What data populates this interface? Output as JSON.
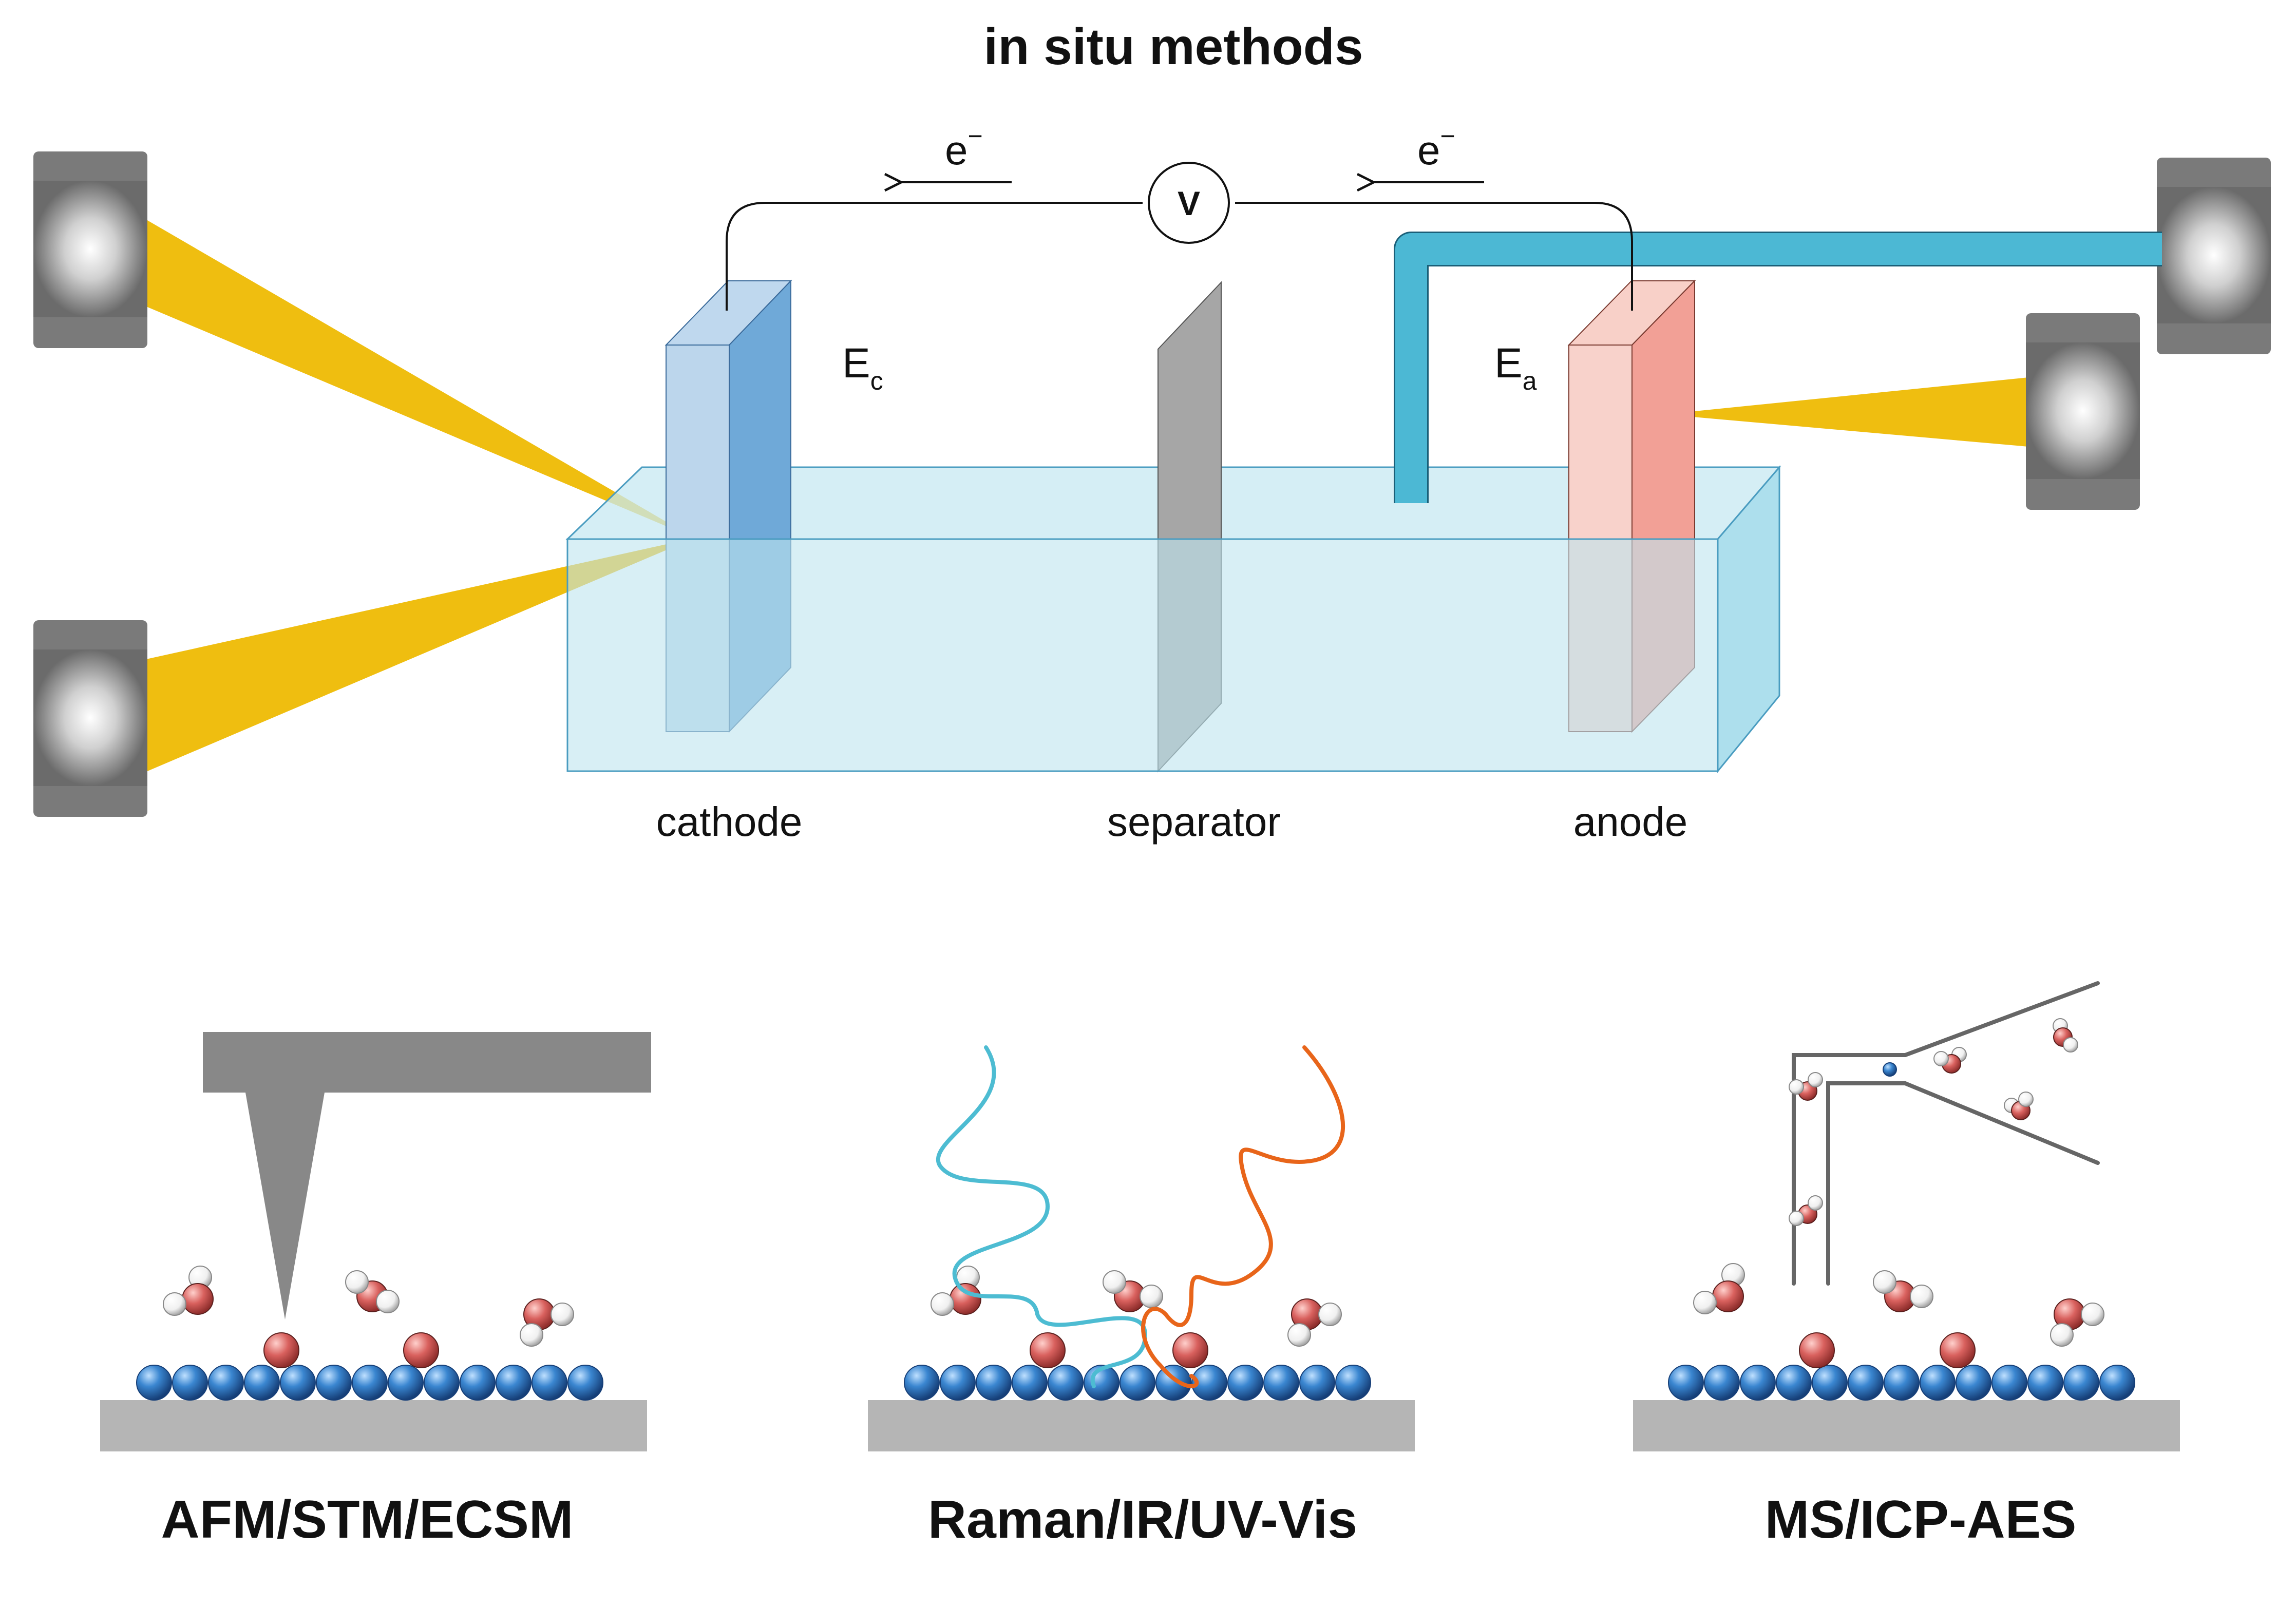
{
  "title": "in situ methods",
  "cell": {
    "electron_symbol": "e",
    "electron_sup": "−",
    "voltmeter": "V",
    "cathode_potential": {
      "main": "E",
      "sub": "c"
    },
    "anode_potential": {
      "main": "E",
      "sub": "a"
    },
    "labels": {
      "cathode": "cathode",
      "separator": "separator",
      "anode": "anode"
    }
  },
  "methods": [
    {
      "name": "AFM/STM/ECSM"
    },
    {
      "name": "Raman/IR/UV-Vis"
    },
    {
      "name": "MS/ICP-AES"
    }
  ],
  "colors": {
    "beam": "#EFBE10",
    "electrolyte": "#C7E8F2",
    "cathode": "#8DB8DE",
    "anode": "#F3A8A0",
    "separator": "#A6A6A6",
    "capillary": "#4CB8D4",
    "incident_wave": "#4DBCD2",
    "scattered_wave": "#E8651A",
    "adsorbate_atom": "#D9615E",
    "hydrogen": "#F5F5F5",
    "catalyst_atom": "#2E78C4",
    "substrate": "#B5B5B5"
  }
}
